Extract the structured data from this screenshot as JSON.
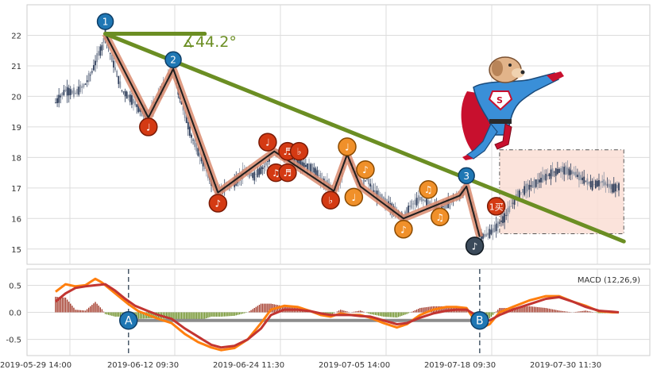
{
  "chart_data": [
    {
      "type": "candlestick",
      "panel": "price",
      "y_ticks": [
        "15",
        "16",
        "17",
        "18",
        "19",
        "20",
        "21",
        "22"
      ],
      "ylim": [
        14.5,
        23.0
      ],
      "grid": true,
      "x_tick_labels": [
        "2019-05-29 14:00",
        "2019-06-12 09:30",
        "2019-06-24 11:30",
        "2019-07-05 14:00",
        "2019-07-18 09:30",
        "2019-07-30 11:30"
      ],
      "price_path": [
        [
          0,
          19.8
        ],
        [
          6,
          20.2
        ],
        [
          12,
          20.1
        ],
        [
          18,
          20.4
        ],
        [
          22,
          20.8
        ],
        [
          26,
          21.4
        ],
        [
          28,
          21.6
        ],
        [
          30,
          22.05
        ],
        [
          33,
          21.4
        ],
        [
          36,
          20.9
        ],
        [
          40,
          20.2
        ],
        [
          46,
          19.9
        ],
        [
          52,
          19.5
        ],
        [
          56,
          19.3
        ],
        [
          60,
          19.8
        ],
        [
          66,
          20.4
        ],
        [
          71,
          20.9
        ],
        [
          74,
          20.2
        ],
        [
          78,
          19.4
        ],
        [
          82,
          18.7
        ],
        [
          86,
          18.2
        ],
        [
          90,
          17.7
        ],
        [
          94,
          17.2
        ],
        [
          98,
          16.85
        ],
        [
          102,
          17.0
        ],
        [
          108,
          17.2
        ],
        [
          114,
          17.5
        ],
        [
          120,
          17.4
        ],
        [
          126,
          17.7
        ],
        [
          132,
          18.2
        ],
        [
          138,
          18.1
        ],
        [
          144,
          17.9
        ],
        [
          150,
          17.75
        ],
        [
          156,
          17.6
        ],
        [
          162,
          17.2
        ],
        [
          168,
          16.9
        ],
        [
          172,
          17.2
        ],
        [
          176,
          18.1
        ],
        [
          180,
          17.6
        ],
        [
          184,
          17.05
        ],
        [
          188,
          17.3
        ],
        [
          192,
          16.9
        ],
        [
          198,
          16.6
        ],
        [
          204,
          16.3
        ],
        [
          210,
          16.0
        ],
        [
          214,
          16.4
        ],
        [
          220,
          16.65
        ],
        [
          226,
          16.5
        ],
        [
          232,
          16.3
        ],
        [
          238,
          16.55
        ],
        [
          244,
          16.75
        ],
        [
          248,
          17.05
        ],
        [
          252,
          16.3
        ],
        [
          256,
          15.4
        ],
        [
          260,
          15.45
        ],
        [
          264,
          15.6
        ],
        [
          268,
          15.85
        ],
        [
          272,
          16.1
        ],
        [
          274,
          16.3
        ],
        [
          278,
          16.7
        ],
        [
          282,
          16.9
        ],
        [
          288,
          17.1
        ],
        [
          294,
          17.3
        ],
        [
          300,
          17.5
        ],
        [
          306,
          17.6
        ],
        [
          312,
          17.5
        ],
        [
          318,
          17.3
        ],
        [
          324,
          17.1
        ],
        [
          330,
          17.2
        ],
        [
          336,
          17.0
        ],
        [
          340,
          17.05
        ]
      ],
      "zigzag": [
        [
          30,
          22.05
        ],
        [
          56,
          19.3
        ],
        [
          71,
          20.9
        ],
        [
          98,
          16.85
        ],
        [
          132,
          18.2
        ],
        [
          168,
          16.9
        ],
        [
          176,
          18.1
        ],
        [
          184,
          17.05
        ],
        [
          210,
          16.0
        ],
        [
          244,
          16.75
        ],
        [
          248,
          17.05
        ],
        [
          256,
          15.4
        ]
      ],
      "trend_lines": [
        {
          "from": [
            30,
            22.05
          ],
          "to": [
            343,
            15.25
          ]
        },
        {
          "from": [
            30,
            22.05
          ],
          "to": [
            90,
            22.05
          ]
        }
      ],
      "angle_label": "∡44.2°",
      "markers": [
        {
          "label": "1",
          "x": 30,
          "y": 22.45,
          "style": "blue"
        },
        {
          "label": "2",
          "x": 71,
          "y": 21.2,
          "style": "blue"
        },
        {
          "label": "3",
          "x": 248,
          "y": 17.4,
          "style": "blue"
        },
        {
          "label": "♩",
          "x": 56,
          "y": 19.0,
          "style": "red"
        },
        {
          "label": "♪",
          "x": 98,
          "y": 16.5,
          "style": "red"
        },
        {
          "label": "♩",
          "x": 128,
          "y": 18.5,
          "style": "red"
        },
        {
          "label": "♫",
          "x": 133,
          "y": 17.5,
          "style": "red"
        },
        {
          "label": "♬",
          "x": 140,
          "y": 18.2,
          "style": "red"
        },
        {
          "label": "♬",
          "x": 140,
          "y": 17.5,
          "style": "red"
        },
        {
          "label": "♭",
          "x": 147,
          "y": 18.2,
          "style": "red"
        },
        {
          "label": "♭",
          "x": 166,
          "y": 16.6,
          "style": "red"
        },
        {
          "label": "♩",
          "x": 176,
          "y": 18.35,
          "style": "orange"
        },
        {
          "label": "♩",
          "x": 180,
          "y": 16.7,
          "style": "orange"
        },
        {
          "label": "♪",
          "x": 187,
          "y": 17.6,
          "style": "orange"
        },
        {
          "label": "♪",
          "x": 210,
          "y": 15.65,
          "style": "orange"
        },
        {
          "label": "♫",
          "x": 225,
          "y": 16.95,
          "style": "orange"
        },
        {
          "label": "♫",
          "x": 232,
          "y": 16.05,
          "style": "orange"
        },
        {
          "label": "♪",
          "x": 253,
          "y": 15.1,
          "style": "dark"
        },
        {
          "label": "1买",
          "x": 266,
          "y": 16.4,
          "style": "buy"
        }
      ],
      "forecast_box": {
        "x0": 268,
        "x1": 343,
        "y0": 15.5,
        "y1": 18.25
      }
    },
    {
      "type": "macd",
      "panel": "indicator",
      "legend": "MACD (12,26,9)",
      "legend_position": "top-right",
      "y_ticks": [
        "0.5",
        "0.0",
        "-0.5"
      ],
      "ylim": [
        -0.8,
        0.8
      ],
      "grid": true,
      "dif_line": [
        [
          0,
          0.38
        ],
        [
          6,
          0.52
        ],
        [
          12,
          0.48
        ],
        [
          18,
          0.5
        ],
        [
          24,
          0.62
        ],
        [
          28,
          0.55
        ],
        [
          32,
          0.45
        ],
        [
          38,
          0.3
        ],
        [
          44,
          0.15
        ],
        [
          50,
          0.02
        ],
        [
          56,
          -0.05
        ],
        [
          62,
          -0.12
        ],
        [
          70,
          -0.2
        ],
        [
          78,
          -0.4
        ],
        [
          86,
          -0.55
        ],
        [
          94,
          -0.65
        ],
        [
          100,
          -0.7
        ],
        [
          108,
          -0.66
        ],
        [
          116,
          -0.5
        ],
        [
          124,
          -0.2
        ],
        [
          130,
          0.05
        ],
        [
          138,
          0.12
        ],
        [
          146,
          0.1
        ],
        [
          154,
          0.02
        ],
        [
          160,
          -0.05
        ],
        [
          166,
          -0.08
        ],
        [
          172,
          -0.02
        ],
        [
          178,
          -0.05
        ],
        [
          184,
          -0.05
        ],
        [
          190,
          -0.1
        ],
        [
          198,
          -0.2
        ],
        [
          206,
          -0.28
        ],
        [
          212,
          -0.22
        ],
        [
          220,
          -0.05
        ],
        [
          228,
          0.05
        ],
        [
          236,
          0.1
        ],
        [
          242,
          0.1
        ],
        [
          248,
          0.08
        ],
        [
          252,
          -0.1
        ],
        [
          256,
          -0.3
        ],
        [
          262,
          -0.22
        ],
        [
          268,
          0.0
        ],
        [
          276,
          0.1
        ],
        [
          286,
          0.22
        ],
        [
          296,
          0.3
        ],
        [
          304,
          0.3
        ],
        [
          312,
          0.2
        ],
        [
          320,
          0.12
        ],
        [
          328,
          0.02
        ],
        [
          336,
          0.0
        ],
        [
          340,
          0.0
        ]
      ],
      "dea_line": [
        [
          0,
          0.2
        ],
        [
          6,
          0.35
        ],
        [
          12,
          0.45
        ],
        [
          18,
          0.48
        ],
        [
          24,
          0.5
        ],
        [
          30,
          0.52
        ],
        [
          36,
          0.4
        ],
        [
          42,
          0.25
        ],
        [
          48,
          0.12
        ],
        [
          56,
          0.02
        ],
        [
          62,
          -0.05
        ],
        [
          70,
          -0.12
        ],
        [
          78,
          -0.3
        ],
        [
          86,
          -0.45
        ],
        [
          94,
          -0.6
        ],
        [
          100,
          -0.65
        ],
        [
          108,
          -0.62
        ],
        [
          116,
          -0.5
        ],
        [
          124,
          -0.3
        ],
        [
          130,
          -0.05
        ],
        [
          138,
          0.05
        ],
        [
          146,
          0.05
        ],
        [
          154,
          0.02
        ],
        [
          160,
          -0.02
        ],
        [
          166,
          -0.05
        ],
        [
          172,
          -0.05
        ],
        [
          178,
          -0.05
        ],
        [
          184,
          -0.07
        ],
        [
          190,
          -0.08
        ],
        [
          198,
          -0.15
        ],
        [
          206,
          -0.22
        ],
        [
          212,
          -0.2
        ],
        [
          220,
          -0.1
        ],
        [
          228,
          -0.02
        ],
        [
          236,
          0.03
        ],
        [
          242,
          0.05
        ],
        [
          248,
          0.05
        ],
        [
          252,
          -0.02
        ],
        [
          256,
          -0.15
        ],
        [
          262,
          -0.15
        ],
        [
          268,
          -0.05
        ],
        [
          276,
          0.05
        ],
        [
          286,
          0.15
        ],
        [
          296,
          0.25
        ],
        [
          304,
          0.28
        ],
        [
          312,
          0.2
        ],
        [
          320,
          0.1
        ],
        [
          328,
          0.03
        ],
        [
          336,
          0.01
        ],
        [
          340,
          0.0
        ]
      ],
      "divergence_line": {
        "from": [
          44,
          -0.15
        ],
        "to": [
          256,
          -0.15
        ]
      },
      "markers": [
        {
          "label": "A",
          "x": 44,
          "y": -0.15
        },
        {
          "label": "B",
          "x": 256,
          "y": -0.15
        }
      ],
      "vertical_markers": [
        44,
        256
      ]
    }
  ],
  "colors": {
    "grid": "#dcdcdc",
    "panel_border": "#cccccc",
    "candle_up": "#2f3f5c",
    "candle_down": "#8c94a4",
    "zigzag": "#1e1e1e",
    "zigzag_glow": "#d98b6f",
    "trend": "#6b8e23",
    "marker_blue": "#1f77b4",
    "marker_red": "#d43a13",
    "marker_orange": "#f0902a",
    "marker_dark": "#3b4a5a",
    "forecast_fill": "#fadcd2",
    "macd_dif": "#ff7f0e",
    "macd_dea": "#c23531",
    "macd_hist_pos": "#a33a2a",
    "macd_hist_neg": "#6b8e23",
    "divergence": "#8c8c8c"
  },
  "icons": {
    "mascot": "superhero-dog-icon"
  }
}
